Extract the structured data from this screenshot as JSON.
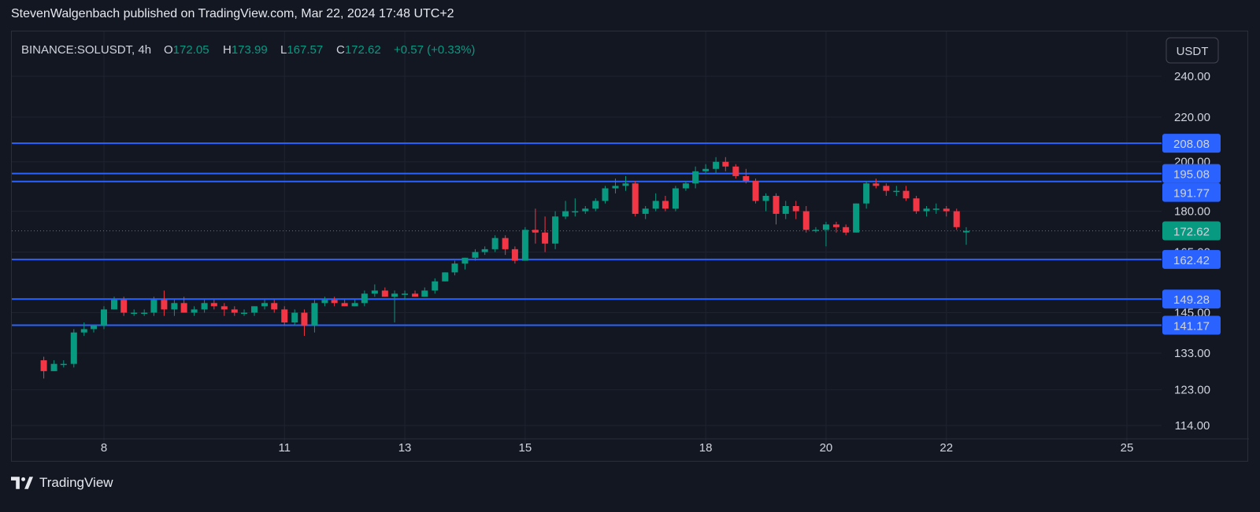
{
  "publish_line": "StevenWalgenbach published on TradingView.com, Mar 22, 2024 17:48 UTC+2",
  "footer": {
    "brand": "TradingView"
  },
  "legend": {
    "symbol": "BINANCE:SOLUSDT, 4h",
    "open_label": "O",
    "open": "172.05",
    "high_label": "H",
    "high": "173.99",
    "low_label": "L",
    "low": "167.57",
    "close_label": "C",
    "close": "172.62",
    "change": "+0.57 (+0.33%)"
  },
  "currency_button": "USDT",
  "colors": {
    "up": "#089981",
    "down": "#f23645",
    "level_line": "#2962ff",
    "background": "#131722",
    "grid": "#1f2330",
    "text": "#d1d4dc"
  },
  "chart_data": {
    "type": "candlestick",
    "symbol": "BINANCE:SOLUSDT",
    "interval": "4h",
    "x_axis_ticks": [
      "8",
      "11",
      "13",
      "15",
      "18",
      "20",
      "22",
      "25"
    ],
    "y_axis_ticks": [
      "240.00",
      "220.00",
      "200.00",
      "180.00",
      "165.00",
      "145.00",
      "133.00",
      "123.00",
      "114.00"
    ],
    "y_scale": "log",
    "ylim": [
      114,
      254
    ],
    "last_price": 172.62,
    "horizontal_levels": [
      208.08,
      195.08,
      191.77,
      162.42,
      149.28,
      141.17
    ],
    "candles": [
      [
        7.0,
        131,
        132,
        126,
        128
      ],
      [
        7.17,
        128,
        131,
        128,
        130
      ],
      [
        7.33,
        130,
        131,
        129,
        130
      ],
      [
        7.5,
        130,
        140,
        129,
        139
      ],
      [
        7.67,
        139,
        142,
        138,
        140
      ],
      [
        7.83,
        140,
        141,
        139,
        141
      ],
      [
        8.0,
        141,
        147,
        140,
        146
      ],
      [
        8.17,
        146,
        150,
        146,
        149
      ],
      [
        8.33,
        149,
        150,
        144,
        145
      ],
      [
        8.5,
        145,
        146,
        144,
        145
      ],
      [
        8.67,
        145,
        146,
        144,
        145
      ],
      [
        8.83,
        145,
        150,
        144,
        149
      ],
      [
        9.0,
        149,
        152,
        144,
        146
      ],
      [
        9.17,
        146,
        149,
        144,
        148
      ],
      [
        9.33,
        148,
        150,
        145,
        145
      ],
      [
        9.5,
        145,
        147,
        144,
        146
      ],
      [
        9.67,
        146,
        149,
        145,
        148
      ],
      [
        9.83,
        148,
        149,
        146,
        147
      ],
      [
        10.0,
        147,
        148,
        144,
        146
      ],
      [
        10.17,
        146,
        147,
        144,
        145
      ],
      [
        10.33,
        145,
        146,
        144,
        145
      ],
      [
        10.5,
        145,
        147,
        144,
        147
      ],
      [
        10.67,
        147,
        149,
        146,
        148
      ],
      [
        10.83,
        148,
        149,
        145,
        146
      ],
      [
        11.0,
        146,
        147,
        141,
        142
      ],
      [
        11.17,
        142,
        146,
        141,
        145
      ],
      [
        11.33,
        145,
        146,
        138,
        141
      ],
      [
        11.5,
        141,
        149,
        139,
        148
      ],
      [
        11.67,
        148,
        150,
        147,
        149
      ],
      [
        11.83,
        149,
        150,
        147,
        148
      ],
      [
        12.0,
        148,
        149,
        147,
        147
      ],
      [
        12.17,
        147,
        149,
        147,
        148
      ],
      [
        12.33,
        148,
        152,
        147,
        151
      ],
      [
        12.5,
        151,
        154,
        150,
        152
      ],
      [
        12.67,
        152,
        153,
        150,
        150
      ],
      [
        12.83,
        150,
        152,
        142,
        151
      ],
      [
        13.0,
        151,
        152,
        149,
        151
      ],
      [
        13.17,
        151,
        152,
        150,
        150
      ],
      [
        13.33,
        150,
        153,
        150,
        152
      ],
      [
        13.5,
        152,
        156,
        151,
        155
      ],
      [
        13.67,
        155,
        158,
        155,
        158
      ],
      [
        13.83,
        158,
        162,
        157,
        161
      ],
      [
        14.0,
        161,
        163,
        159,
        163
      ],
      [
        14.17,
        163,
        166,
        162,
        165
      ],
      [
        14.33,
        165,
        167,
        164,
        166
      ],
      [
        14.5,
        166,
        171,
        165,
        170
      ],
      [
        14.67,
        170,
        171,
        164,
        166
      ],
      [
        14.83,
        166,
        167,
        161,
        162
      ],
      [
        15.0,
        162,
        174,
        162,
        173
      ],
      [
        15.17,
        173,
        181,
        168,
        172
      ],
      [
        15.33,
        172,
        178,
        165,
        168
      ],
      [
        15.5,
        168,
        180,
        166,
        178
      ],
      [
        15.67,
        178,
        184,
        177,
        180
      ],
      [
        15.83,
        180,
        185,
        178,
        180
      ],
      [
        16.0,
        180,
        182,
        179,
        181
      ],
      [
        16.17,
        181,
        185,
        180,
        184
      ],
      [
        16.33,
        184,
        190,
        183,
        189
      ],
      [
        16.5,
        189,
        193,
        187,
        190
      ],
      [
        16.67,
        190,
        194,
        188,
        191
      ],
      [
        16.83,
        191,
        192,
        178,
        179
      ],
      [
        17.0,
        179,
        182,
        177,
        181
      ],
      [
        17.17,
        181,
        187,
        180,
        184
      ],
      [
        17.33,
        184,
        186,
        180,
        181
      ],
      [
        17.5,
        181,
        190,
        180,
        189
      ],
      [
        17.67,
        189,
        192,
        188,
        191
      ],
      [
        17.83,
        191,
        198,
        189,
        196
      ],
      [
        18.0,
        196,
        199,
        195,
        197
      ],
      [
        18.17,
        197,
        202,
        195,
        200
      ],
      [
        18.33,
        200,
        202,
        196,
        198
      ],
      [
        18.5,
        198,
        199,
        193,
        194
      ],
      [
        18.67,
        194,
        197,
        191,
        192
      ],
      [
        18.83,
        192,
        193,
        183,
        184
      ],
      [
        19.0,
        184,
        187,
        180,
        186
      ],
      [
        19.17,
        186,
        187,
        175,
        179
      ],
      [
        19.33,
        179,
        184,
        177,
        182
      ],
      [
        19.5,
        182,
        184,
        177,
        180
      ],
      [
        19.67,
        180,
        182,
        172,
        173
      ],
      [
        19.83,
        173,
        174,
        172,
        173
      ],
      [
        20.0,
        173,
        176,
        167,
        175
      ],
      [
        20.17,
        175,
        176,
        172,
        174
      ],
      [
        20.33,
        174,
        175,
        171,
        172
      ],
      [
        20.5,
        172,
        183,
        172,
        183
      ],
      [
        20.67,
        183,
        192,
        181,
        191
      ],
      [
        20.83,
        191,
        193,
        189,
        190
      ],
      [
        21.0,
        190,
        191,
        186,
        188
      ],
      [
        21.17,
        188,
        190,
        186,
        188
      ],
      [
        21.33,
        188,
        190,
        184,
        185
      ],
      [
        21.5,
        185,
        186,
        179,
        180
      ],
      [
        21.67,
        180,
        182,
        178,
        181
      ],
      [
        21.83,
        181,
        183,
        179,
        181
      ],
      [
        22.0,
        181,
        182,
        178,
        180
      ],
      [
        22.17,
        180,
        181,
        173,
        174
      ],
      [
        22.33,
        172.05,
        173.99,
        167.57,
        172.62
      ]
    ]
  }
}
